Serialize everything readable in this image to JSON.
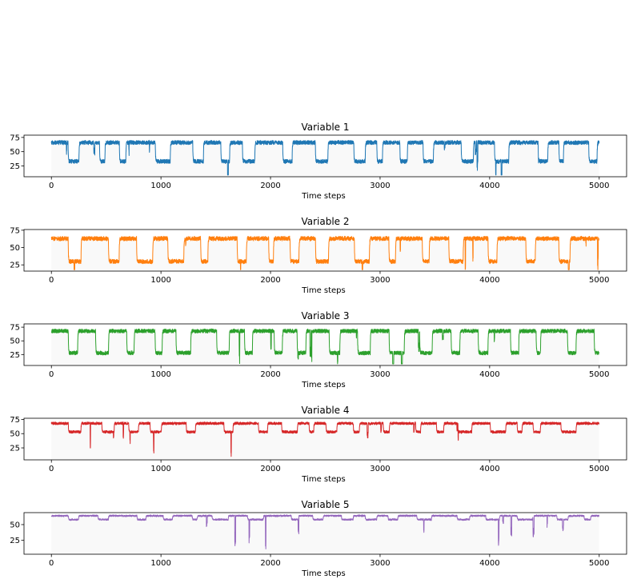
{
  "chart_data": [
    {
      "type": "line",
      "title": "Variable 1",
      "xlabel": "Time steps",
      "ylabel": "",
      "xlim": [
        -250,
        5250
      ],
      "ylim": [
        6,
        79
      ],
      "xticks": [
        0,
        1000,
        2000,
        3000,
        4000,
        5000
      ],
      "yticks": [
        25,
        50,
        75
      ],
      "color": "#1f77b4",
      "seed": 11,
      "high_mean": 66,
      "low_mean": 33,
      "noise": 3.5,
      "n_points": 5000,
      "min": 9,
      "max": 75
    },
    {
      "type": "line",
      "title": "Variable 2",
      "xlabel": "Time steps",
      "ylabel": "",
      "xlim": [
        -250,
        5250
      ],
      "ylim": [
        16,
        76
      ],
      "xticks": [
        0,
        1000,
        2000,
        3000,
        4000,
        5000
      ],
      "yticks": [
        25,
        50,
        75
      ],
      "color": "#ff7f0e",
      "seed": 23,
      "high_mean": 63,
      "low_mean": 30,
      "noise": 3.0,
      "n_points": 5000,
      "min": 18,
      "max": 73
    },
    {
      "type": "line",
      "title": "Variable 3",
      "xlabel": "Time steps",
      "ylabel": "",
      "xlim": [
        -250,
        5250
      ],
      "ylim": [
        5,
        81
      ],
      "xticks": [
        0,
        1000,
        2000,
        3000,
        4000,
        5000
      ],
      "yticks": [
        25,
        50,
        75
      ],
      "color": "#2ca02c",
      "seed": 37,
      "high_mean": 68,
      "low_mean": 28,
      "noise": 3.5,
      "n_points": 5000,
      "min": 8,
      "max": 78
    },
    {
      "type": "line",
      "title": "Variable 4",
      "xlabel": "Time steps",
      "ylabel": "",
      "xlim": [
        -250,
        5250
      ],
      "ylim": [
        4,
        77
      ],
      "xticks": [
        0,
        1000,
        2000,
        3000,
        4000,
        5000
      ],
      "yticks": [
        25,
        50,
        75
      ],
      "color": "#d62728",
      "seed": 41,
      "high_mean": 68,
      "low_mean": 53,
      "noise": 2.2,
      "n_points": 5000,
      "min": 6,
      "max": 74
    },
    {
      "type": "line",
      "title": "Variable 5",
      "xlabel": "Time steps",
      "ylabel": "",
      "xlim": [
        -250,
        5250
      ],
      "ylim": [
        3,
        69
      ],
      "xticks": [
        0,
        1000,
        2000,
        3000,
        4000,
        5000
      ],
      "yticks": [
        25,
        50
      ],
      "color": "#9467bd",
      "seed": 53,
      "high_mean": 64,
      "low_mean": 58,
      "noise": 1.2,
      "n_points": 5000,
      "min": 6,
      "max": 66
    }
  ]
}
